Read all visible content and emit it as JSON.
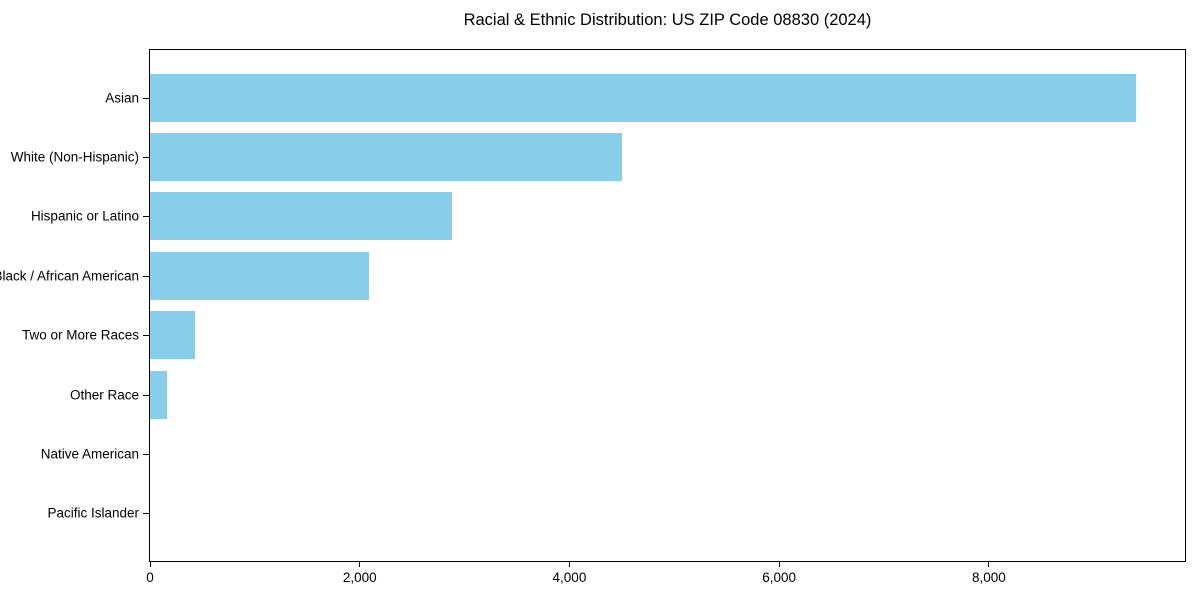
{
  "chart_data": {
    "type": "bar",
    "orientation": "horizontal",
    "title": "Racial & Ethnic Distribution: US ZIP Code 08830 (2024)",
    "xlabel": "",
    "ylabel": "",
    "categories": [
      "Asian",
      "White (Non-Hispanic)",
      "Hispanic or Latino",
      "Black / African American",
      "Two or More Races",
      "Other Race",
      "Native American",
      "Pacific Islander"
    ],
    "values": [
      9400,
      4500,
      2880,
      2090,
      430,
      160,
      0,
      0
    ],
    "xlim": [
      0,
      9870
    ],
    "x_ticks": [
      {
        "value": 0,
        "label": "0"
      },
      {
        "value": 2000,
        "label": "2,000"
      },
      {
        "value": 4000,
        "label": "4,000"
      },
      {
        "value": 6000,
        "label": "6,000"
      },
      {
        "value": 8000,
        "label": "8,000"
      }
    ],
    "grid": false,
    "legend": null,
    "bar_color": "#87CEEB",
    "axis_color": "#000000",
    "background_color": "#FFFFFF"
  }
}
